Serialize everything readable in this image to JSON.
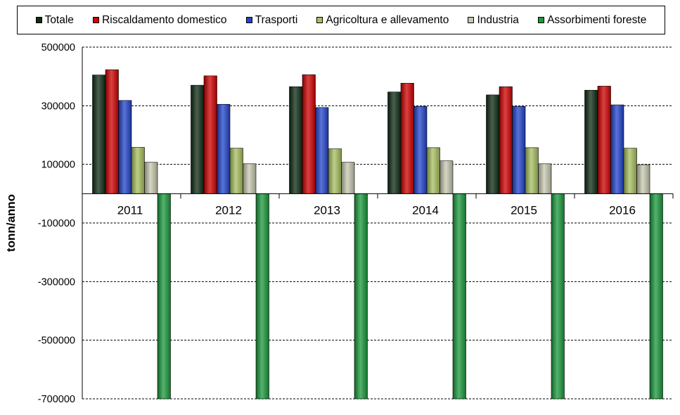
{
  "chart_data": {
    "type": "bar",
    "title": "",
    "xlabel": "",
    "ylabel": "tonn/anno",
    "ylim": [
      -700000,
      500000
    ],
    "yticks": [
      500000,
      300000,
      100000,
      -100000,
      -300000,
      -500000,
      -700000
    ],
    "grid": true,
    "legend_position": "top",
    "categories": [
      "2011",
      "2012",
      "2013",
      "2014",
      "2015",
      "2016"
    ],
    "series": [
      {
        "name": "Totale",
        "color": "#0d2b14",
        "values": [
          405000,
          370000,
          365000,
          347000,
          337000,
          353000
        ]
      },
      {
        "name": "Riscaldamento domestico",
        "color": "#d00000",
        "values": [
          423000,
          402000,
          406000,
          377000,
          365000,
          367000
        ]
      },
      {
        "name": "Trasporti",
        "color": "#2244cc",
        "values": [
          318000,
          305000,
          294000,
          298000,
          298000,
          303000
        ]
      },
      {
        "name": "Agricoltura e allevamento",
        "color": "#a8c060",
        "values": [
          158000,
          155000,
          153000,
          157000,
          157000,
          155000
        ]
      },
      {
        "name": "Industria",
        "color": "#c8c8b0",
        "values": [
          107000,
          102000,
          107000,
          112000,
          102000,
          99000
        ]
      },
      {
        "name": "Assorbimenti foreste",
        "color": "#1a9a3c",
        "values": [
          -700000,
          -700000,
          -700000,
          -700000,
          -700000,
          -700000
        ]
      }
    ]
  }
}
